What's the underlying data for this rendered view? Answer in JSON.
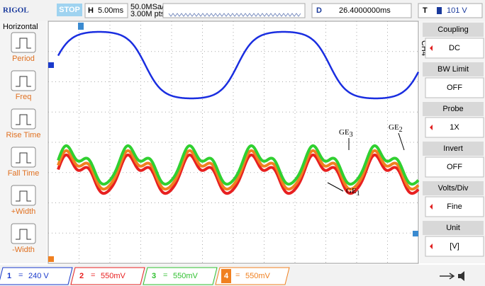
{
  "header": {
    "brand": "RIGOL",
    "status": "STOP",
    "timebase_label": "H",
    "timebase": "5.00ms",
    "sample_rate": "50.0MSa/s",
    "memory_depth": "3.00M pts",
    "delay_label": "D",
    "delay": "26.4000000ms",
    "trigger_label": "T",
    "trigger_level": "101 V"
  },
  "left_menu": {
    "title": "Horizontal",
    "items": [
      "Period",
      "Freq",
      "Rise Time",
      "Fall Time",
      "+Width",
      "-Width"
    ]
  },
  "right_menu": {
    "channel": "CH4",
    "items": [
      {
        "label": "Coupling",
        "value": "DC"
      },
      {
        "label": "BW Limit",
        "value": "OFF"
      },
      {
        "label": "Probe",
        "value": "1X"
      },
      {
        "label": "Invert",
        "value": "OFF"
      },
      {
        "label": "Volts/Div",
        "value": "Fine"
      },
      {
        "label": "Unit",
        "value": "[V]"
      }
    ]
  },
  "annotations": [
    {
      "base": "GE",
      "sub": "3"
    },
    {
      "base": "GE",
      "sub": "2"
    },
    {
      "base": "GE",
      "sub": "1"
    }
  ],
  "channels": [
    {
      "number": "1",
      "coupling": "=",
      "scale": "240 V"
    },
    {
      "number": "2",
      "coupling": "=",
      "scale": "550mV"
    },
    {
      "number": "3",
      "coupling": "=",
      "scale": "550mV"
    },
    {
      "number": "4",
      "coupling": "=",
      "scale": "550mV"
    }
  ]
}
